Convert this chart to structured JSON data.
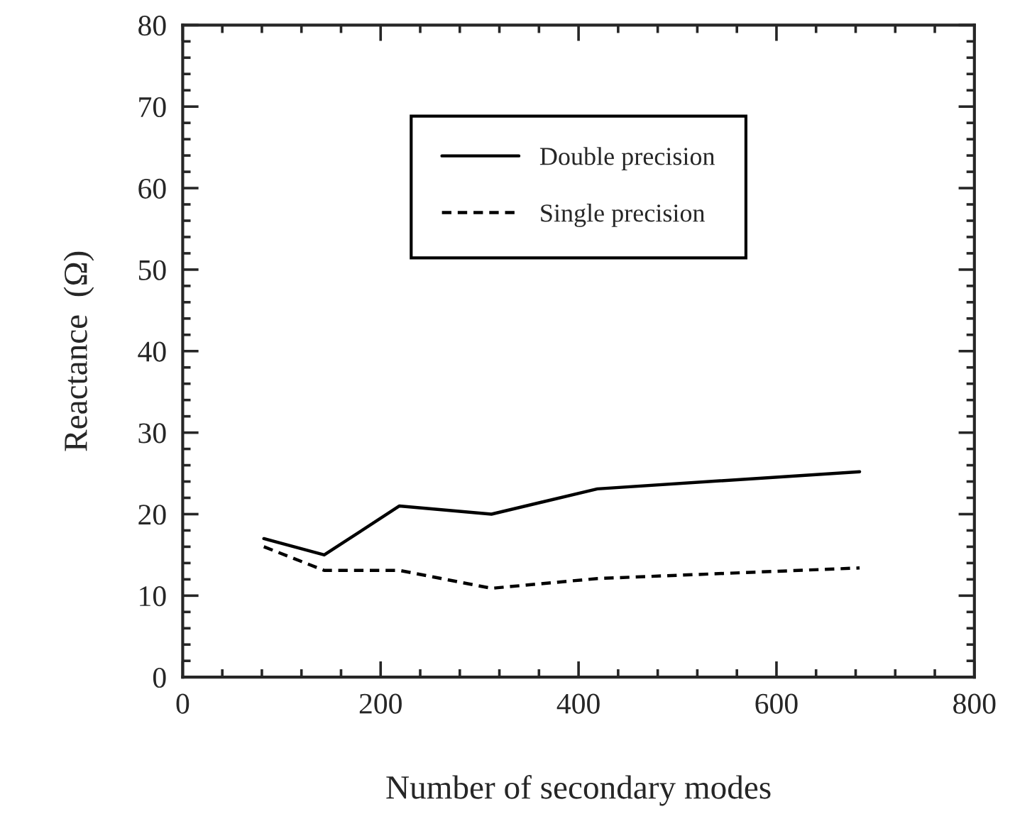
{
  "chart_data": {
    "type": "line",
    "xlabel": "Number of secondary modes",
    "ylabel": "Reactance  (Ω)",
    "xlim": [
      0,
      800
    ],
    "xticks": [
      0,
      200,
      400,
      600,
      800
    ],
    "ylim": [
      0,
      80
    ],
    "yticks": [
      0,
      10,
      20,
      30,
      40,
      50,
      60,
      70,
      80
    ],
    "grid": false,
    "legend": "top",
    "marker": "none",
    "series": [
      {
        "name": "Double precision",
        "color": "#000000",
        "line_style": "solid",
        "x": [
          82,
          143,
          219,
          312,
          419,
          684
        ],
        "values": [
          17,
          15,
          21,
          20,
          23.1,
          25.2
        ]
      },
      {
        "name": "Single precision",
        "color": "#000000",
        "line_style": "dashed",
        "x": [
          82,
          143,
          219,
          312,
          419,
          684
        ],
        "values": [
          16,
          13.1,
          13.1,
          10.9,
          12.1,
          13.4
        ]
      }
    ]
  }
}
